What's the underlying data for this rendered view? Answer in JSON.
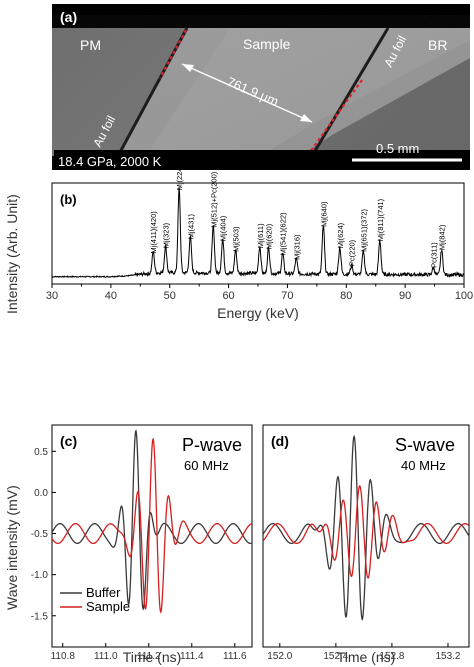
{
  "panel_a": {
    "label": "(a)",
    "left_region": "PM",
    "center_region": "Sample",
    "right_region": "BR",
    "left_foil": "Au foil",
    "right_foil": "Au foil",
    "distance": "761.9 µm",
    "conditions": "18.4 GPa, 2000 K",
    "scale_bar": "0.5 mm"
  },
  "chart_data": [
    {
      "type": "line",
      "panel": "(b)",
      "xlabel": "Energy (keV)",
      "ylabel": "Intensity (Arb. Unit)",
      "xlim": [
        30,
        100
      ],
      "x_ticks": [
        "30",
        "40",
        "50",
        "60",
        "70",
        "80",
        "90",
        "100"
      ],
      "peaks": [
        {
          "label": "Mj(411)(420)",
          "x": 47.2,
          "h": 0.24
        },
        {
          "label": "Mj(323)",
          "x": 49.3,
          "h": 0.3
        },
        {
          "label": "Mj(224)",
          "x": 51.6,
          "h": 0.95
        },
        {
          "label": "Mj(431)",
          "x": 53.5,
          "h": 0.4
        },
        {
          "label": "Mj(512)+Pc(200)",
          "x": 57.4,
          "h": 0.53
        },
        {
          "label": "Mj(404)",
          "x": 59.0,
          "h": 0.38
        },
        {
          "label": "Mj(503)",
          "x": 61.2,
          "h": 0.26
        },
        {
          "label": "Mj(611)",
          "x": 65.3,
          "h": 0.3
        },
        {
          "label": "Mj(620)",
          "x": 66.8,
          "h": 0.29
        },
        {
          "label": "Mj(541)(622)",
          "x": 69.2,
          "h": 0.22
        },
        {
          "label": "Mj(316)",
          "x": 71.5,
          "h": 0.17
        },
        {
          "label": "Mj(640)",
          "x": 76.1,
          "h": 0.54
        },
        {
          "label": "Mj(624)",
          "x": 78.9,
          "h": 0.3
        },
        {
          "label": "Pc(220)",
          "x": 80.9,
          "h": 0.1
        },
        {
          "label": "Mj(651)(372)",
          "x": 82.9,
          "h": 0.26
        },
        {
          "label": "Mj(811)(741)",
          "x": 85.7,
          "h": 0.38
        },
        {
          "label": "Pc(311)",
          "x": 94.8,
          "h": 0.08
        },
        {
          "label": "Mj(842)",
          "x": 96.2,
          "h": 0.28
        }
      ]
    },
    {
      "type": "line",
      "panel": "(c)",
      "title": "P-wave",
      "subtitle": "60 MHz",
      "xlabel": "Time (ns)",
      "ylabel": "Wave intensity (mV)",
      "xlim": [
        110.75,
        111.68
      ],
      "ylim": [
        -1.88,
        0.82
      ],
      "x_ticks": [
        "110.8",
        "111.0",
        "111.2",
        "111.4",
        "111.6"
      ],
      "y_ticks": [
        "0.5",
        "0.0",
        "-0.5",
        "-1.0",
        "-1.5"
      ],
      "series": [
        {
          "name": "Buffer",
          "center": 111.14,
          "amplitude": 1.25,
          "sigma": 0.06,
          "freq": 13.8
        },
        {
          "name": "Sample",
          "center": 111.22,
          "amplitude": 1.15,
          "sigma": 0.08,
          "freq": 13.5
        }
      ]
    },
    {
      "type": "line",
      "panel": "(d)",
      "title": "S-wave",
      "subtitle": "40 MHz",
      "xlabel": "Time (ns)",
      "xlim": [
        151.88,
        153.35
      ],
      "ylim": [
        -1.88,
        0.82
      ],
      "x_ticks": [
        "152.0",
        "152.4",
        "152.8",
        "153.2"
      ],
      "series": [
        {
          "name": "Buffer",
          "center": 152.53,
          "amplitude": 1.18,
          "sigma": 0.16,
          "freq": 8.4
        },
        {
          "name": "Sample",
          "center": 152.57,
          "amplitude": 0.58,
          "sigma": 0.2,
          "freq": 8.3
        }
      ]
    }
  ],
  "legend": {
    "buffer": "Buffer",
    "sample": "Sample"
  },
  "colors": {
    "buffer": "#3a3a3a",
    "sample": "#d42020",
    "marker": "#e0202a"
  }
}
